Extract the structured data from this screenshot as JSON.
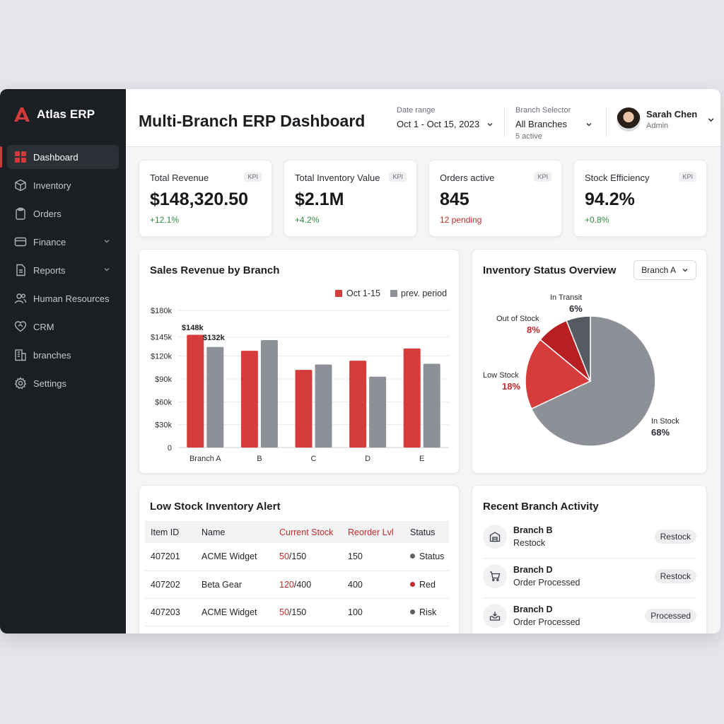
{
  "app": {
    "name": "Atlas ERP"
  },
  "colors": {
    "accent": "#d33a3a",
    "series_current": "#d63c3c",
    "series_prev": "#8d9096",
    "positive": "#2e8b40",
    "negative": "#c42b2b"
  },
  "sidebar": {
    "items": [
      {
        "label": "Dashboard",
        "icon": "grid-icon",
        "active": true
      },
      {
        "label": "Inventory",
        "icon": "box-icon"
      },
      {
        "label": "Orders",
        "icon": "clipboard-icon"
      },
      {
        "label": "Finance",
        "icon": "card-icon",
        "expandable": true
      },
      {
        "label": "Reports",
        "icon": "document-icon",
        "expandable": true
      },
      {
        "label": "Human Resources",
        "icon": "people-icon"
      },
      {
        "label": "CRM",
        "icon": "heart-handshake-icon"
      },
      {
        "label": "branches",
        "icon": "building-icon"
      },
      {
        "label": "Settings",
        "icon": "gear-icon"
      }
    ]
  },
  "header": {
    "title": "Multi-Branch ERP Dashboard",
    "date_range": {
      "label": "Date range",
      "value": "Oct 1 - Oct 15, 2023"
    },
    "branch_selector": {
      "label": "Branch Selector",
      "value": "All Branches",
      "sub": "5 active"
    },
    "user": {
      "name": "Sarah Chen",
      "role": "Admin"
    }
  },
  "kpis": [
    {
      "label": "Total Revenue",
      "badge": "KPI",
      "value": "$148,320.50",
      "delta": "+12.1%",
      "tone": "positive"
    },
    {
      "label": "Total Inventory Value",
      "badge": "KPI",
      "value": "$2.1M",
      "delta": "+4.2%",
      "tone": "positive"
    },
    {
      "label": "Orders active",
      "badge": "KPI",
      "value": "845",
      "delta": "12 pending",
      "tone": "negative"
    },
    {
      "label": "Stock Efficiency",
      "badge": "KPI",
      "value": "94.2%",
      "delta": "+0.8%",
      "tone": "positive"
    }
  ],
  "sales_chart": {
    "title": "Sales Revenue by Branch",
    "legend": [
      "Oct 1-15",
      "prev. period"
    ],
    "ticks": [
      "0",
      "$30k",
      "$60k",
      "$90k",
      "$120k",
      "$145k",
      "$180k"
    ],
    "data_labels": [
      "$148k",
      "$132k"
    ]
  },
  "chart_data": [
    {
      "type": "bar",
      "title": "Sales Revenue by Branch",
      "categories": [
        "Branch A",
        "B",
        "C",
        "D",
        "E"
      ],
      "series": [
        {
          "name": "Oct 1-15",
          "values": [
            148,
            127,
            102,
            114,
            130
          ]
        },
        {
          "name": "prev. period",
          "values": [
            132,
            141,
            109,
            93,
            110
          ]
        }
      ],
      "yticks": [
        0,
        30,
        60,
        90,
        120,
        145,
        180
      ],
      "ylim": [
        0,
        180
      ],
      "unit": "$k",
      "grid": true,
      "legend_position": "top-right"
    },
    {
      "type": "pie",
      "title": "Inventory Status Overview",
      "slices": [
        {
          "label": "In Stock",
          "value": 68,
          "text": "68%"
        },
        {
          "label": "Low Stock",
          "value": 18,
          "text": "18%"
        },
        {
          "label": "Out of Stock",
          "value": 8,
          "text": "8%"
        },
        {
          "label": "In Transit",
          "value": 6,
          "text": "6%"
        }
      ]
    }
  ],
  "inventory_status": {
    "title": "Inventory Status Overview",
    "branch_select": "Branch A"
  },
  "low_stock": {
    "title": "Low Stock Inventory Alert",
    "columns": [
      "Item ID",
      "Name",
      "Current Stock",
      "Reorder Lvl",
      "Status"
    ],
    "rows": [
      {
        "id": "407201",
        "name": "ACME Widget",
        "stock_current": "50",
        "stock_total": "/150",
        "reorder": "150",
        "status": "Status",
        "status_color": "#5b5f66"
      },
      {
        "id": "407202",
        "name": "Beta Gear",
        "stock_current": "120",
        "stock_total": "/400",
        "reorder": "400",
        "status": "Red",
        "status_color": "#c42b2b"
      },
      {
        "id": "407203",
        "name": "ACME Widget",
        "stock_current": "50",
        "stock_total": "/150",
        "reorder": "100",
        "status": "Risk",
        "status_color": "#5b5f66"
      }
    ]
  },
  "activity": {
    "title": "Recent Branch Activity",
    "items": [
      {
        "branch": "Branch B",
        "action": "Restock",
        "badge": "Restock",
        "icon": "warehouse-icon"
      },
      {
        "branch": "Branch D",
        "action": "Order Processed",
        "badge": "Restock",
        "icon": "cart-icon"
      },
      {
        "branch": "Branch D",
        "action": "Order Processed",
        "badge": "Processed",
        "icon": "inbox-icon"
      }
    ]
  }
}
